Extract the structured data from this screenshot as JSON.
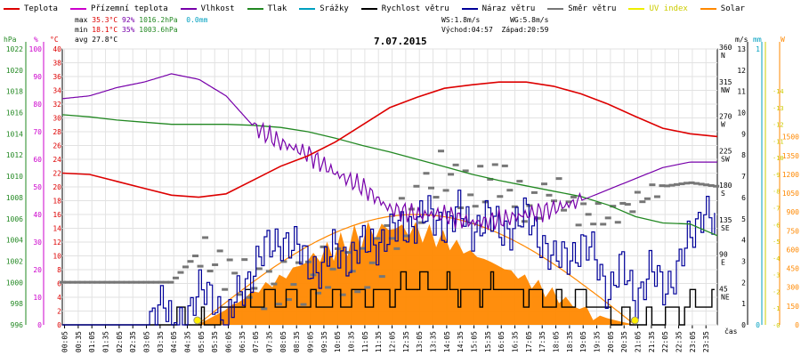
{
  "legend": [
    {
      "label": "Teplota",
      "color": "#dd0000"
    },
    {
      "label": "Přízemní teplota",
      "color": "#cc00cc"
    },
    {
      "label": "Vlhkost",
      "color": "#7700aa"
    },
    {
      "label": "Tlak",
      "color": "#228822"
    },
    {
      "label": "Srážky",
      "color": "#00a0c0"
    },
    {
      "label": "Rychlost větru",
      "color": "#000000"
    },
    {
      "label": "Náraz větru",
      "color": "#000099"
    },
    {
      "label": "Směr větru",
      "color": "#777777"
    },
    {
      "label": "UV index",
      "color": "#eeee00"
    },
    {
      "label": "Solar",
      "color": "#ff8800"
    }
  ],
  "stats": {
    "max": {
      "label": "max",
      "temp": "35.3°C",
      "hum": "92%",
      "press": "1016.2hPa",
      "rain": "0.0mm"
    },
    "min": {
      "label": "min",
      "temp": "18.1°C",
      "hum": "35%",
      "press": "1003.6hPa"
    },
    "avg": {
      "label": "avg",
      "temp": "27.8°C"
    },
    "ws": "WS:1.8m/s",
    "wg": "WG:5.8m/s",
    "sunrise": "Východ:04:57",
    "sunset": "Západ:20:59"
  },
  "date": "7.07.2015",
  "axes": {
    "units": {
      "hpa": "hPa",
      "pct": "%",
      "temp": "°C",
      "ms": "m/s",
      "mm": "mm",
      "w": "W"
    },
    "hpa_ticks": [
      "996",
      "998",
      "1000",
      "1002",
      "1004",
      "1006",
      "1008",
      "1010",
      "1012",
      "1014",
      "1016",
      "1018",
      "1020",
      "1022"
    ],
    "pct_ticks": [
      "0",
      "10",
      "20",
      "30",
      "40",
      "50",
      "60",
      "70",
      "80",
      "90",
      "100"
    ],
    "temp_ticks": [
      "0",
      "2",
      "4",
      "6",
      "8",
      "10",
      "12",
      "14",
      "16",
      "18",
      "20",
      "22",
      "24",
      "26",
      "28",
      "30",
      "32",
      "34",
      "36",
      "38",
      "40"
    ],
    "dir_ticks": [
      "45\nNE",
      "90\nE",
      "135\nSE",
      "180\nS",
      "225\nSW",
      "270\nW",
      "315\nNW",
      "360\nN"
    ],
    "ms_ticks": [
      "0",
      "1",
      "2",
      "3",
      "4",
      "5",
      "6",
      "7",
      "8",
      "9",
      "10",
      "11",
      "12",
      "13"
    ],
    "mm_ticks": [
      "0",
      "1"
    ],
    "w_ticks": [
      "0",
      "150",
      "300",
      "450",
      "600",
      "750",
      "900",
      "1050",
      "1200",
      "1350",
      "1500"
    ],
    "x_label": "čas",
    "x_ticks": [
      "00:05",
      "00:35",
      "01:05",
      "01:35",
      "02:05",
      "02:35",
      "03:05",
      "03:35",
      "04:05",
      "04:35",
      "05:05",
      "05:35",
      "06:05",
      "06:35",
      "07:05",
      "07:35",
      "08:05",
      "08:35",
      "09:05",
      "09:35",
      "10:05",
      "10:35",
      "11:05",
      "11:35",
      "12:05",
      "12:35",
      "13:05",
      "13:35",
      "14:05",
      "14:35",
      "15:05",
      "15:35",
      "16:05",
      "16:35",
      "17:05",
      "17:35",
      "18:05",
      "18:35",
      "19:05",
      "19:35",
      "20:05",
      "20:35",
      "21:05",
      "21:35",
      "22:05",
      "22:35",
      "23:05",
      "23:35"
    ]
  },
  "chart_data": {
    "type": "line",
    "title": "7.07.2015",
    "x_unit": "hour of day",
    "x_range": [
      0,
      24
    ],
    "series": [
      {
        "name": "Teplota",
        "unit": "°C",
        "x": [
          0,
          1,
          2,
          3,
          4,
          5,
          6,
          7,
          8,
          9,
          10,
          11,
          12,
          13,
          14,
          15,
          16,
          17,
          18,
          19,
          20,
          21,
          22,
          23,
          24
        ],
        "values": [
          22,
          21.8,
          20.8,
          19.8,
          18.8,
          18.5,
          19,
          21,
          23,
          24.5,
          26.5,
          29,
          31.5,
          33,
          34.3,
          34.8,
          35.2,
          35.2,
          34.6,
          33.5,
          32,
          30.2,
          28.5,
          27.7,
          27.3
        ]
      },
      {
        "name": "Vlhkost",
        "unit": "%",
        "x": [
          0,
          1,
          2,
          3,
          4,
          5,
          6,
          7,
          8,
          9,
          10,
          11,
          12,
          13,
          14,
          15,
          16,
          17,
          18,
          19,
          20,
          21,
          22,
          23,
          24
        ],
        "values": [
          82,
          83,
          86,
          88,
          91,
          89,
          83,
          72,
          66,
          62,
          55,
          50,
          42,
          40,
          40,
          37,
          38,
          40,
          42,
          45,
          49,
          53,
          57,
          59,
          59
        ]
      },
      {
        "name": "Tlak",
        "unit": "hPa",
        "x": [
          0,
          1,
          2,
          3,
          4,
          5,
          6,
          7,
          8,
          9,
          10,
          11,
          12,
          13,
          14,
          15,
          16,
          17,
          18,
          19,
          20,
          21,
          22,
          23,
          24
        ],
        "values": [
          1015.8,
          1015.6,
          1015.3,
          1015.1,
          1014.9,
          1014.9,
          1014.9,
          1014.8,
          1014.6,
          1014.2,
          1013.6,
          1012.9,
          1012.3,
          1011.6,
          1010.9,
          1010.2,
          1009.6,
          1009.1,
          1008.6,
          1008.1,
          1007.3,
          1006.2,
          1005.6,
          1005.5,
          1004.4
        ]
      },
      {
        "name": "Rychlost větru",
        "unit": "m/s",
        "x": [
          0,
          3.5,
          4,
          5,
          5.5,
          6,
          7,
          8,
          9,
          10,
          11,
          12,
          13,
          14,
          15,
          16,
          17,
          18,
          19,
          20,
          21,
          22,
          23,
          24
        ],
        "values": [
          0,
          0,
          0.3,
          0,
          0.2,
          0.8,
          1,
          1.2,
          0.9,
          1,
          1.5,
          1.5,
          2,
          1.7,
          1.5,
          1.8,
          1.5,
          1,
          1.2,
          0.6,
          0,
          0.5,
          0.9,
          1
        ]
      },
      {
        "name": "Náraz větru",
        "unit": "m/s",
        "x": [
          0,
          3,
          3.5,
          4,
          4.5,
          5,
          5.5,
          6,
          6.5,
          7,
          7.5,
          8,
          8.5,
          9,
          9.5,
          10,
          10.5,
          11,
          11.5,
          12,
          12.5,
          13,
          13.5,
          14,
          14.5,
          15,
          15.5,
          16,
          16.5,
          17,
          17.5,
          18,
          18.5,
          19,
          19.5,
          20,
          20.5,
          21,
          21.5,
          22,
          22.5,
          23,
          23.5,
          24
        ],
        "values": [
          0,
          0,
          1.2,
          0,
          0.5,
          1.4,
          1.5,
          0,
          1.6,
          2.8,
          3.5,
          4.2,
          3.5,
          3,
          2.6,
          3.6,
          3.2,
          3.6,
          4,
          4.2,
          4.6,
          5,
          5,
          4.8,
          5.2,
          4.6,
          5,
          4.5,
          4.7,
          5,
          4.2,
          2.8,
          3.4,
          3.6,
          3.2,
          1.6,
          2.6,
          1.4,
          2.4,
          1.8,
          2.6,
          4,
          5.8,
          4.2
        ]
      },
      {
        "name": "Směr větru",
        "unit": "°",
        "x": [
          0,
          1,
          2,
          3,
          4,
          5,
          6,
          7,
          8,
          9,
          10,
          11,
          12,
          13,
          14,
          15,
          16,
          17,
          18,
          19,
          20,
          21,
          22,
          23,
          24
        ],
        "values": [
          55,
          55,
          55,
          55,
          55,
          95,
          70,
          50,
          50,
          60,
          75,
          65,
          110,
          160,
          200,
          170,
          195,
          150,
          175,
          145,
          140,
          160,
          180,
          185,
          180
        ]
      },
      {
        "name": "Solar",
        "unit": "W",
        "x": [
          4.95,
          6,
          7,
          8,
          9,
          10,
          11,
          12,
          13,
          14,
          15,
          16,
          17,
          18,
          19,
          20,
          20.98
        ],
        "values": [
          0,
          120,
          260,
          370,
          520,
          610,
          720,
          780,
          750,
          680,
          570,
          470,
          360,
          240,
          130,
          50,
          0
        ]
      },
      {
        "name": "UV index",
        "unit": "",
        "x": [
          4.95,
          20.98
        ],
        "values": [
          0,
          0
        ]
      }
    ]
  }
}
